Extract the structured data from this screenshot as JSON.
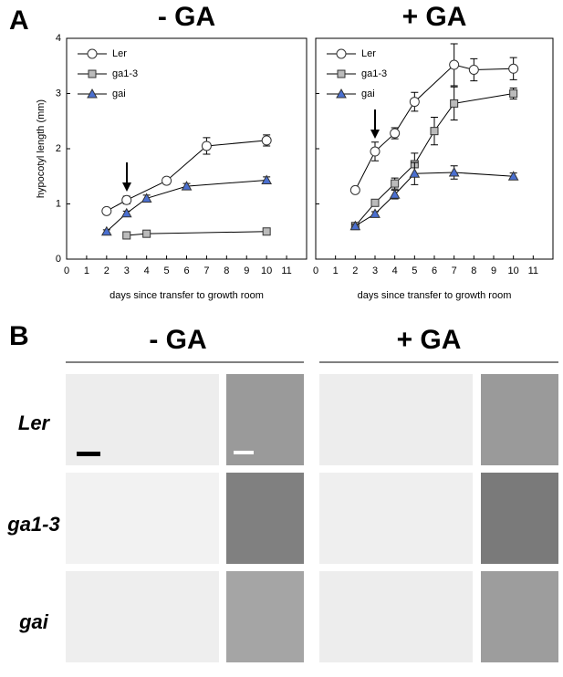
{
  "panel_labels": [
    "A",
    "B"
  ],
  "chart_data": [
    {
      "type": "line",
      "title": "- GA",
      "xlabel": "days since transfer to growth room",
      "ylabel": "hypocotyl length (mm)",
      "xlim": [
        0,
        12
      ],
      "xticks": [
        0,
        1,
        2,
        3,
        4,
        5,
        6,
        7,
        8,
        9,
        10,
        11
      ],
      "ylim": [
        0,
        4
      ],
      "yticks": [
        0,
        1,
        2,
        3,
        4
      ],
      "legend": "upper left",
      "series": [
        {
          "name": "Ler",
          "color": "#ffffff",
          "marker": "circle",
          "x": [
            2,
            3,
            5,
            7,
            10
          ],
          "values": [
            0.87,
            1.07,
            1.42,
            2.05,
            2.15
          ],
          "errors": [
            0.05,
            0.07,
            0.06,
            0.15,
            0.1
          ]
        },
        {
          "name": "ga1-3",
          "color": "#bbbbbb",
          "marker": "square",
          "x": [
            3,
            4,
            10
          ],
          "values": [
            0.43,
            0.46,
            0.5
          ],
          "errors": [
            0.03,
            0.03,
            0.03
          ]
        },
        {
          "name": "gai",
          "color": "#4a6fd0",
          "marker": "triangle",
          "x": [
            2,
            3,
            4,
            6,
            10
          ],
          "values": [
            0.5,
            0.83,
            1.1,
            1.32,
            1.43
          ],
          "errors": [
            0.03,
            0.04,
            0.06,
            0.05,
            0.06
          ]
        }
      ]
    },
    {
      "type": "line",
      "title": "+ GA",
      "xlabel": "days since transfer to growth room",
      "xlim": [
        0,
        12
      ],
      "xticks": [
        0,
        1,
        2,
        3,
        4,
        5,
        6,
        7,
        8,
        9,
        10,
        11
      ],
      "ylim": [
        0,
        4
      ],
      "yticks": [
        0,
        1,
        2,
        3,
        4
      ],
      "legend": "upper left",
      "series": [
        {
          "name": "Ler",
          "color": "#ffffff",
          "marker": "circle",
          "x": [
            2,
            3,
            4,
            5,
            7,
            8,
            10
          ],
          "values": [
            1.25,
            1.95,
            2.28,
            2.85,
            3.52,
            3.43,
            3.45
          ],
          "errors": [
            0.05,
            0.17,
            0.1,
            0.17,
            0.38,
            0.2,
            0.2
          ]
        },
        {
          "name": "ga1-3",
          "color": "#bbbbbb",
          "marker": "square",
          "x": [
            2,
            3,
            4,
            5,
            6,
            7,
            10
          ],
          "values": [
            0.6,
            1.02,
            1.37,
            1.72,
            2.32,
            2.82,
            3.0
          ],
          "errors": [
            0.03,
            0.05,
            0.1,
            0.2,
            0.25,
            0.3,
            0.1
          ]
        },
        {
          "name": "gai",
          "color": "#4a6fd0",
          "marker": "triangle",
          "x": [
            2,
            3,
            4,
            5,
            7,
            10
          ],
          "values": [
            0.6,
            0.82,
            1.17,
            1.55,
            1.57,
            1.5
          ],
          "errors": [
            0.03,
            0.04,
            0.08,
            0.2,
            0.12,
            0.06
          ]
        }
      ]
    }
  ],
  "panel_b": {
    "column_titles": [
      "- GA",
      "+ GA"
    ],
    "row_labels": [
      "Ler",
      "ga1-3",
      "gai"
    ]
  }
}
